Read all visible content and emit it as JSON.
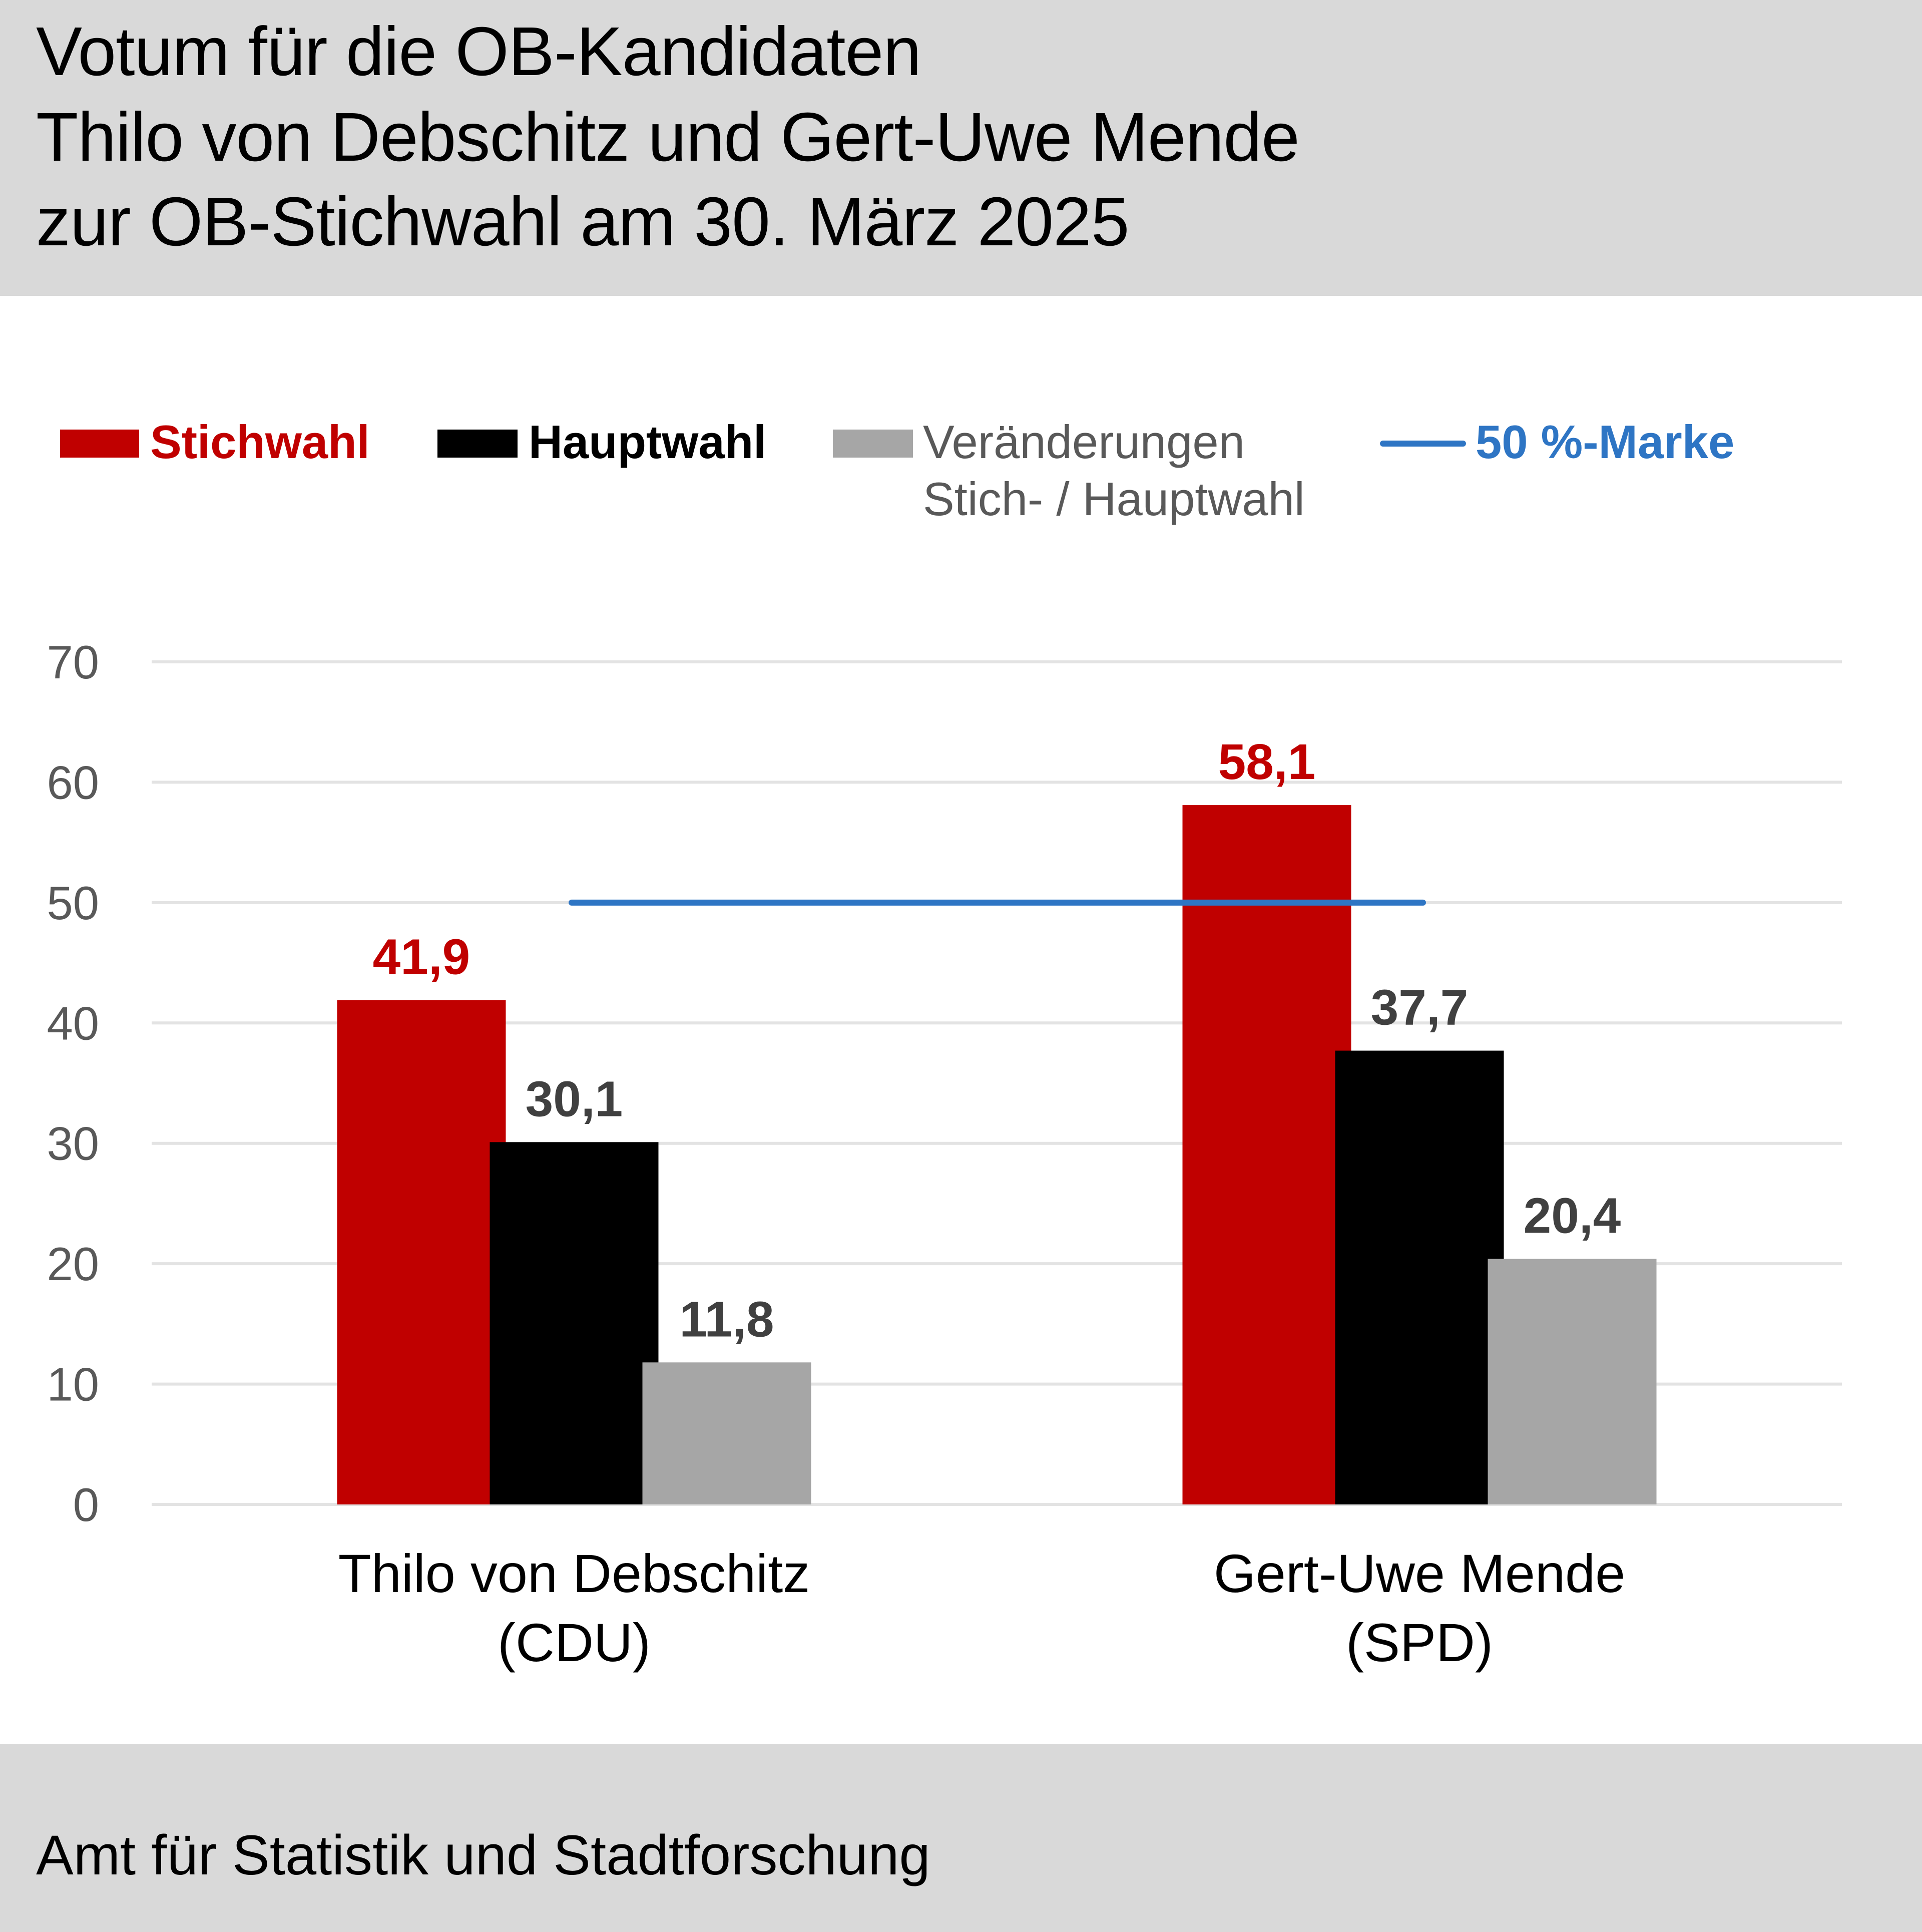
{
  "header": {
    "title_lines": [
      "Votum für die OB-Kandidaten",
      "Thilo von Debschitz und Gert-Uwe Mende",
      "zur OB-Stichwahl am 30. März 2025"
    ]
  },
  "footer": {
    "source": "Amt für Statistik und Stadtforschung"
  },
  "colors": {
    "stichwahl": "#c00000",
    "hauptwahl": "#000000",
    "veraenderung": "#a6a6a6",
    "marke": "#2e75c4",
    "grid": "#e3e3e3",
    "axis_text": "#595959",
    "value_text": "#404040",
    "header_bg": "#d9d9d9"
  },
  "legend": {
    "items": [
      {
        "label": "Stichwahl",
        "type": "box",
        "color": "#c00000",
        "text_color": "#c00000",
        "bold": true
      },
      {
        "label": "Hauptwahl",
        "type": "box",
        "color": "#000000",
        "text_color": "#000000",
        "bold": true
      },
      {
        "label_lines": [
          "Veränderungen",
          "Stich- / Hauptwahl"
        ],
        "type": "box",
        "color": "#a6a6a6",
        "text_color": "#595959",
        "bold": false
      },
      {
        "label": "50 %-Marke",
        "type": "line",
        "color": "#2e75c4",
        "text_color": "#2e75c4",
        "bold": true
      }
    ]
  },
  "chart_data": {
    "type": "bar",
    "title": "Votum für die OB-Kandidaten Thilo von Debschitz und Gert-Uwe Mende zur OB-Stichwahl am 30. März 2025",
    "xlabel": "",
    "ylabel": "",
    "categories": [
      [
        "Thilo von Debschitz",
        "(CDU)"
      ],
      [
        "Gert-Uwe Mende",
        "(SPD)"
      ]
    ],
    "series": [
      {
        "name": "Stichwahl",
        "values": [
          41.9,
          58.1
        ],
        "labels": [
          "41,9",
          "58,1"
        ],
        "color": "#c00000",
        "label_color": "#c00000"
      },
      {
        "name": "Hauptwahl",
        "values": [
          30.1,
          37.7
        ],
        "labels": [
          "30,1",
          "37,7"
        ],
        "color": "#000000",
        "label_color": "#404040"
      },
      {
        "name": "Veränderungen Stich- / Hauptwahl",
        "values": [
          11.8,
          20.4
        ],
        "labels": [
          "11,8",
          "20,4"
        ],
        "color": "#a6a6a6",
        "label_color": "#404040"
      }
    ],
    "reference_line": {
      "name": "50 %-Marke",
      "value": 50,
      "color": "#2e75c4"
    },
    "ylim": [
      0,
      70
    ],
    "yticks": [
      0,
      10,
      20,
      30,
      40,
      50,
      60,
      70
    ],
    "ytick_labels": [
      "0",
      "10",
      "20",
      "30",
      "40",
      "50",
      "60",
      "70"
    ],
    "grid": true,
    "legend_position": "top"
  }
}
